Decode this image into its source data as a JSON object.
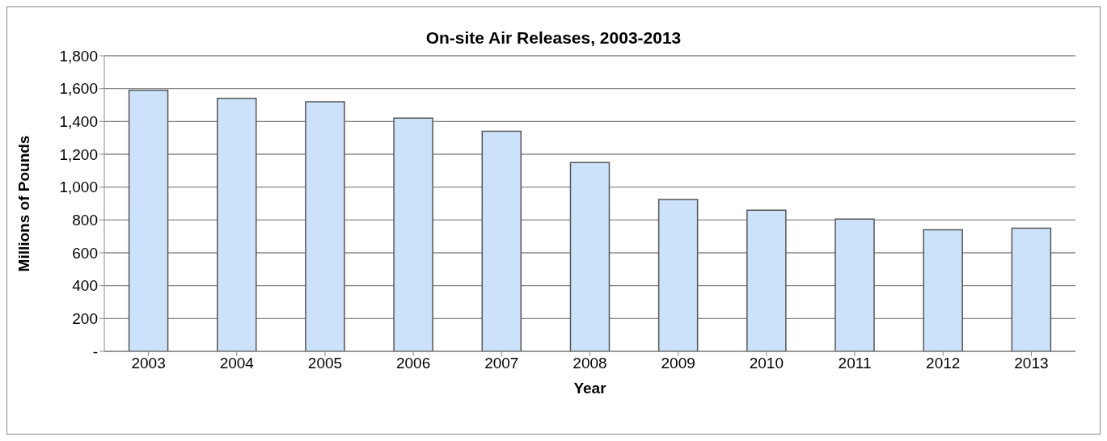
{
  "chart_data": {
    "type": "bar",
    "title": "On-site Air Releases, 2003-2013",
    "xlabel": "Year",
    "ylabel": "Millions of Pounds",
    "categories": [
      "2003",
      "2004",
      "2005",
      "2006",
      "2007",
      "2008",
      "2009",
      "2010",
      "2011",
      "2012",
      "2013"
    ],
    "values": [
      1590,
      1540,
      1520,
      1420,
      1340,
      1150,
      925,
      860,
      805,
      740,
      750
    ],
    "color": "#cce2fb",
    "ylim": [
      0,
      1800
    ],
    "yticks": [
      {
        "value": 0,
        "label": "-"
      },
      {
        "value": 200,
        "label": "200"
      },
      {
        "value": 400,
        "label": "400"
      },
      {
        "value": 600,
        "label": "600"
      },
      {
        "value": 800,
        "label": "800"
      },
      {
        "value": 1000,
        "label": "1,000"
      },
      {
        "value": 1200,
        "label": "1,200"
      },
      {
        "value": 1400,
        "label": "1,400"
      },
      {
        "value": 1600,
        "label": "1,600"
      },
      {
        "value": 1800,
        "label": "1,800"
      }
    ],
    "grid": "y"
  }
}
